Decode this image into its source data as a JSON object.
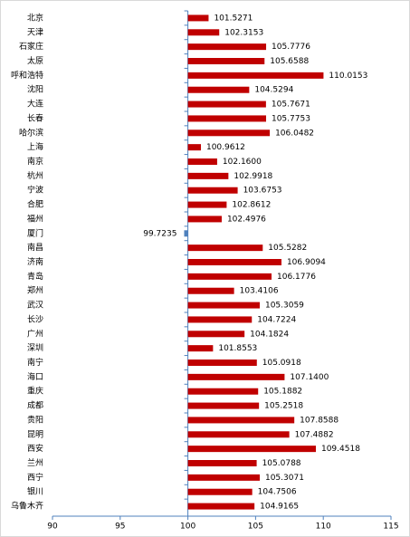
{
  "chart_data": {
    "type": "hbar",
    "categories": [
      "北京",
      "天津",
      "石家庄",
      "太原",
      "呼和浩特",
      "沈阳",
      "大连",
      "长春",
      "哈尔滨",
      "上海",
      "南京",
      "杭州",
      "宁波",
      "合肥",
      "福州",
      "厦门",
      "南昌",
      "济南",
      "青岛",
      "郑州",
      "武汉",
      "长沙",
      "广州",
      "深圳",
      "南宁",
      "海口",
      "重庆",
      "成都",
      "贵阳",
      "昆明",
      "西安",
      "兰州",
      "西宁",
      "银川",
      "乌鲁木齐"
    ],
    "values": [
      101.5271,
      102.3153,
      105.7776,
      105.6588,
      110.0153,
      104.5294,
      105.7671,
      105.7753,
      106.0482,
      100.9612,
      102.16,
      102.9918,
      103.6753,
      102.8612,
      102.4976,
      99.7235,
      105.5282,
      106.9094,
      106.1776,
      103.4106,
      105.3059,
      104.7224,
      104.1824,
      101.8553,
      105.0918,
      107.14,
      105.1882,
      105.2518,
      107.8588,
      107.4882,
      109.4518,
      105.0788,
      105.3071,
      104.7506,
      104.9165
    ],
    "value_labels": [
      "101.5271",
      "102.3153",
      "105.7776",
      "105.6588",
      "110.0153",
      "104.5294",
      "105.7671",
      "105.7753",
      "106.0482",
      "100.9612",
      "102.1600",
      "102.9918",
      "103.6753",
      "102.8612",
      "102.4976",
      "99.7235",
      "105.5282",
      "106.9094",
      "106.1776",
      "103.4106",
      "105.3059",
      "104.7224",
      "104.1824",
      "101.8553",
      "105.0918",
      "107.1400",
      "105.1882",
      "105.2518",
      "107.8588",
      "107.4882",
      "109.4518",
      "105.0788",
      "105.3071",
      "104.7506",
      "104.9165"
    ],
    "color": "#c00000",
    "negative_color": "#4f81bd",
    "axis_crosses": 100,
    "xlim": [
      90,
      115
    ],
    "xticks": [
      90,
      95,
      100,
      105,
      110,
      115
    ]
  }
}
